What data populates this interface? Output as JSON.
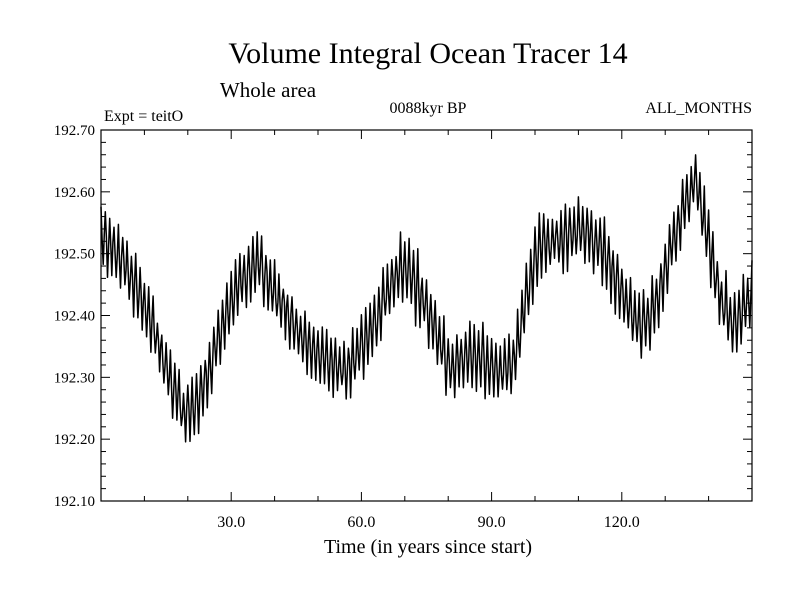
{
  "chart_data": {
    "type": "line",
    "title": "Volume Integral Ocean Tracer 14",
    "subtitle": "Whole area",
    "experiment_label": "Expt = teitO",
    "period_label": "0088kyr BP",
    "months_label": "ALL_MONTHS",
    "xlabel": "Time (in years since start)",
    "ylabel": "",
    "xlim": [
      0,
      150
    ],
    "ylim": [
      192.1,
      192.7
    ],
    "x_ticks": [
      30,
      60,
      90,
      120
    ],
    "x_tick_labels": [
      "30.0",
      "60.0",
      "90.0",
      "120.0"
    ],
    "y_ticks": [
      192.1,
      192.2,
      192.3,
      192.4,
      192.5,
      192.6,
      192.7
    ],
    "y_tick_labels": [
      "192.10",
      "192.20",
      "192.30",
      "192.40",
      "192.50",
      "192.60",
      "192.70"
    ],
    "seasonal_amplitude": 0.045,
    "samples_per_year": 4,
    "series": [
      {
        "name": "Volume integral ocean tracer 14",
        "color": "#000000",
        "trend": {
          "x": [
            0,
            4,
            8,
            12,
            16,
            19,
            22,
            26,
            30,
            33,
            36,
            40,
            44,
            48,
            52,
            56,
            60,
            64,
            67,
            70,
            74,
            78,
            81,
            84,
            88,
            92,
            95,
            98,
            101,
            104,
            108,
            112,
            116,
            120,
            124,
            128,
            131,
            134,
            137,
            140,
            143,
            146,
            150
          ],
          "y": [
            192.53,
            192.5,
            192.45,
            192.38,
            192.3,
            192.24,
            192.25,
            192.34,
            192.43,
            192.46,
            192.49,
            192.44,
            192.39,
            192.35,
            192.33,
            192.31,
            192.35,
            192.4,
            192.46,
            192.48,
            192.43,
            192.36,
            192.31,
            192.34,
            192.33,
            192.31,
            192.32,
            192.43,
            192.51,
            192.52,
            192.53,
            192.54,
            192.5,
            192.44,
            192.38,
            192.42,
            192.5,
            192.57,
            192.62,
            192.52,
            192.42,
            192.39,
            192.43
          ]
        }
      }
    ]
  }
}
